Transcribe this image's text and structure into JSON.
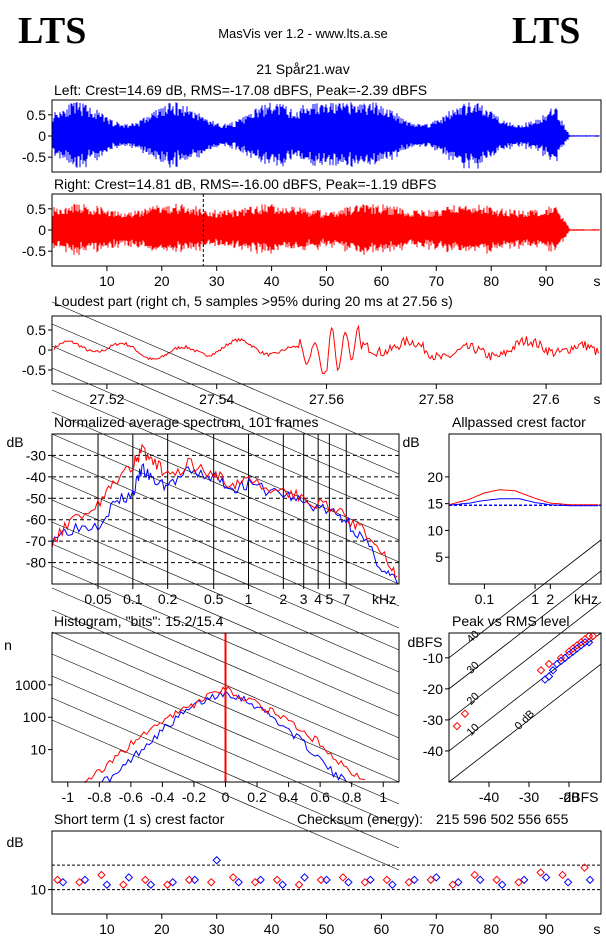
{
  "header": {
    "logo_left": "LTS",
    "logo_right": "LTS",
    "app_title": "MasVis ver 1.2 - www.lts.a.se",
    "file_title": "21 Spår21.wav"
  },
  "chart_data": [
    {
      "id": "left",
      "type": "line",
      "title": "Left: Crest=14.69 dB, RMS=-17.08 dBFS, Peak=-2.39 dBFS",
      "ylim": [
        -0.85,
        0.85
      ],
      "yticks": [
        "0.5",
        "0",
        "-0.5"
      ],
      "yticks_values": [
        0.5,
        0,
        -0.5
      ],
      "xlim": [
        0,
        100
      ],
      "color": "#0000ff"
    },
    {
      "id": "right",
      "type": "line",
      "title": "Right: Crest=14.81 dB, RMS=-16.00 dBFS, Peak=-1.19 dBFS",
      "ylim": [
        -0.85,
        0.85
      ],
      "yticks": [
        "0.5",
        "0",
        "-0.5"
      ],
      "yticks_values": [
        0.5,
        0,
        -0.5
      ],
      "xlim": [
        0,
        100
      ],
      "xticks": [
        "10",
        "20",
        "30",
        "40",
        "50",
        "60",
        "70",
        "80",
        "90",
        "s"
      ],
      "xticks_values": [
        10,
        20,
        30,
        40,
        50,
        60,
        70,
        80,
        90
      ],
      "marker_x": 27.56,
      "color": "#ff0000"
    },
    {
      "id": "loudest",
      "type": "line",
      "title": "Loudest part (right ch, 5 samples >95% during 20 ms at 27.56 s)",
      "ylim": [
        -0.85,
        0.85
      ],
      "yticks": [
        "0.5",
        "0",
        "-0.5"
      ],
      "yticks_values": [
        0.5,
        0,
        -0.5
      ],
      "xlim": [
        27.51,
        27.61
      ],
      "xticks": [
        "27.52",
        "27.54",
        "27.56",
        "27.58",
        "27.6",
        "s"
      ],
      "xticks_values": [
        27.52,
        27.54,
        27.56,
        27.58,
        27.6
      ],
      "color": "#ff0000"
    },
    {
      "id": "spectrum",
      "type": "line",
      "title": "Normalized average spectrum, 101 frames",
      "ylabel": "dB",
      "ylim": [
        -90,
        -20
      ],
      "yticks": [
        "-30",
        "-40",
        "-50",
        "-60",
        "-70",
        "-80"
      ],
      "yticks_values": [
        -30,
        -40,
        -50,
        -60,
        -70,
        -80
      ],
      "xscale": "log",
      "xlim": [
        0.02,
        20
      ],
      "xticks": [
        "0.05",
        "0.1",
        "0.2",
        "0.5",
        "1",
        "2",
        "3",
        "4",
        "5",
        "7",
        "kHz"
      ],
      "xticks_values": [
        0.05,
        0.1,
        0.2,
        0.5,
        1,
        2,
        3,
        4,
        5,
        7
      ],
      "series": [
        {
          "color": "#0000ff",
          "x": [
            0.02,
            0.03,
            0.05,
            0.07,
            0.1,
            0.12,
            0.15,
            0.2,
            0.3,
            0.5,
            0.7,
            1,
            2,
            3,
            5,
            7,
            10,
            15,
            20
          ],
          "y": [
            -68,
            -64,
            -62,
            -52,
            -48,
            -36,
            -42,
            -44,
            -38,
            -40,
            -45,
            -44,
            -48,
            -52,
            -56,
            -60,
            -70,
            -84,
            -90
          ]
        },
        {
          "color": "#ff0000",
          "x": [
            0.02,
            0.03,
            0.05,
            0.07,
            0.1,
            0.12,
            0.15,
            0.2,
            0.3,
            0.5,
            0.7,
            1,
            2,
            3,
            5,
            7,
            10,
            15,
            20
          ],
          "y": [
            -70,
            -60,
            -52,
            -42,
            -34,
            -28,
            -32,
            -40,
            -34,
            -38,
            -43,
            -43,
            -46,
            -50,
            -55,
            -58,
            -66,
            -78,
            -88
          ]
        }
      ]
    },
    {
      "id": "allpass",
      "type": "line",
      "title": "Allpassed crest factor",
      "ylabel": "dB",
      "ylim": [
        0,
        28
      ],
      "yticks": [
        "20",
        "15",
        "10",
        "5"
      ],
      "yticks_values": [
        20,
        15,
        10,
        5
      ],
      "xscale": "log",
      "xlim": [
        0.02,
        20
      ],
      "xticks": [
        "0.1",
        "1",
        "2",
        "kHz"
      ],
      "xticks_values": [
        0.1,
        1,
        2
      ],
      "series": [
        {
          "color": "#ff0000",
          "x": [
            0.02,
            0.05,
            0.1,
            0.2,
            0.4,
            1,
            2,
            5,
            10,
            20
          ],
          "y": [
            14.8,
            15.8,
            17,
            17.6,
            17.4,
            16,
            15.1,
            14.8,
            14.8,
            14.8
          ]
        },
        {
          "color": "#0000ff",
          "x": [
            0.02,
            0.05,
            0.1,
            0.2,
            0.5,
            1,
            2,
            5,
            10,
            20
          ],
          "y": [
            14.7,
            15.1,
            15.6,
            15.9,
            15.9,
            15.2,
            14.8,
            14.6,
            14.6,
            14.6
          ]
        }
      ],
      "reference_line": 14.7
    },
    {
      "id": "histogram",
      "type": "line",
      "title": "Histogram, \"bits\": 15.2/15.4",
      "ylabel": "n",
      "yscale": "log",
      "ylim": [
        1,
        40000
      ],
      "yticks": [
        "1000",
        "100",
        "10"
      ],
      "yticks_values": [
        1000,
        100,
        10
      ],
      "xlim": [
        -1.1,
        1.1
      ],
      "xticks": [
        "-1",
        "-0.8",
        "-0.6",
        "-0.4",
        "-0.2",
        "0",
        "0.2",
        "0.4",
        "0.6",
        "0.8",
        "1"
      ],
      "xticks_values": [
        -1,
        -0.8,
        -0.6,
        -0.4,
        -0.2,
        0,
        0.2,
        0.4,
        0.6,
        0.8,
        1
      ],
      "series": [
        {
          "color": "#0000ff",
          "x": [
            -0.8,
            -0.7,
            -0.6,
            -0.5,
            -0.4,
            -0.3,
            -0.2,
            -0.1,
            0,
            0.1,
            0.2,
            0.3,
            0.4,
            0.5,
            0.6,
            0.7,
            0.8
          ],
          "y": [
            1,
            1.5,
            5,
            15,
            40,
            100,
            220,
            400,
            600,
            400,
            220,
            100,
            40,
            15,
            5,
            1.5,
            1
          ]
        },
        {
          "color": "#ff0000",
          "x": [
            -0.9,
            -0.8,
            -0.7,
            -0.6,
            -0.5,
            -0.4,
            -0.3,
            -0.2,
            -0.1,
            0,
            0.1,
            0.2,
            0.3,
            0.4,
            0.5,
            0.6,
            0.7,
            0.8,
            0.9
          ],
          "y": [
            1,
            2,
            5,
            15,
            35,
            70,
            140,
            260,
            450,
            700,
            450,
            260,
            140,
            70,
            35,
            15,
            5,
            2,
            1
          ]
        }
      ]
    },
    {
      "id": "peak_vs_rms",
      "type": "scatter",
      "title": "Peak vs RMS level",
      "ylabel": "dBFS",
      "xlabel": "dBFS",
      "xlim": [
        -50,
        -12
      ],
      "ylim": [
        -50,
        -2
      ],
      "xticks": [
        "-40",
        "-30",
        "-20",
        "dBFS"
      ],
      "xticks_values": [
        -40,
        -30,
        -20
      ],
      "yticks": [
        "-10",
        "-20",
        "-30",
        "-40"
      ],
      "yticks_values": [
        -10,
        -20,
        -30,
        -40
      ],
      "crest_lines": [
        "40",
        "30",
        "20",
        "10",
        "0 dB"
      ],
      "crest_values": [
        40,
        30,
        20,
        10,
        0
      ],
      "series": [
        {
          "color": "#0000ff",
          "x": [
            -26,
            -24,
            -22,
            -21,
            -20,
            -19,
            -18,
            -17,
            -16,
            -15,
            -23,
            -25
          ],
          "y": [
            -17,
            -14,
            -11,
            -10,
            -9,
            -8,
            -7,
            -6,
            -5,
            -5,
            -12,
            -16
          ]
        },
        {
          "color": "#ff0000",
          "x": [
            -48,
            -46,
            -27,
            -25,
            -22,
            -20,
            -19,
            -18,
            -17,
            -16,
            -15,
            -14
          ],
          "y": [
            -32,
            -28,
            -14,
            -12,
            -10,
            -8,
            -7,
            -6,
            -5,
            -4,
            -3,
            -3
          ]
        }
      ]
    },
    {
      "id": "short_term_crest",
      "type": "scatter",
      "title": "Short term (1 s) crest factor",
      "ylabel": "dB",
      "xlim": [
        0,
        100
      ],
      "ylim": [
        5,
        22
      ],
      "yticks": [
        "10"
      ],
      "yticks_values": [
        10
      ],
      "xticks": [
        "10",
        "20",
        "30",
        "40",
        "50",
        "60",
        "70",
        "80",
        "90",
        "s"
      ],
      "xticks_values": [
        10,
        20,
        30,
        40,
        50,
        60,
        70,
        80,
        90
      ],
      "dashed_levels": [
        10,
        15
      ],
      "series": [
        {
          "color": "#0000ff",
          "x": [
            2,
            6,
            10,
            14,
            18,
            22,
            26,
            30,
            34,
            38,
            42,
            46,
            50,
            54,
            58,
            62,
            66,
            70,
            74,
            78,
            82,
            86,
            90,
            94,
            98
          ],
          "y": [
            11.5,
            12,
            11,
            12.5,
            11,
            11.5,
            12,
            16,
            11.5,
            12,
            11,
            12.5,
            12,
            11.5,
            12,
            11,
            12,
            12.5,
            11.5,
            12,
            11,
            12,
            12.5,
            11.5,
            12
          ]
        },
        {
          "color": "#ff0000",
          "x": [
            1,
            5,
            9,
            13,
            17,
            21,
            25,
            29,
            33,
            37,
            41,
            45,
            49,
            53,
            57,
            61,
            65,
            69,
            73,
            77,
            81,
            85,
            89,
            93,
            97
          ],
          "y": [
            12,
            11.5,
            13,
            11,
            12,
            11,
            12,
            11.5,
            12.5,
            11.5,
            12,
            11,
            12,
            12.5,
            11.5,
            12,
            11.5,
            12,
            11,
            13,
            12,
            11.5,
            13.5,
            13,
            14.5
          ]
        }
      ],
      "checksum_label": "Checksum (energy):",
      "checksum_value": "215 596 502 556 655"
    }
  ]
}
